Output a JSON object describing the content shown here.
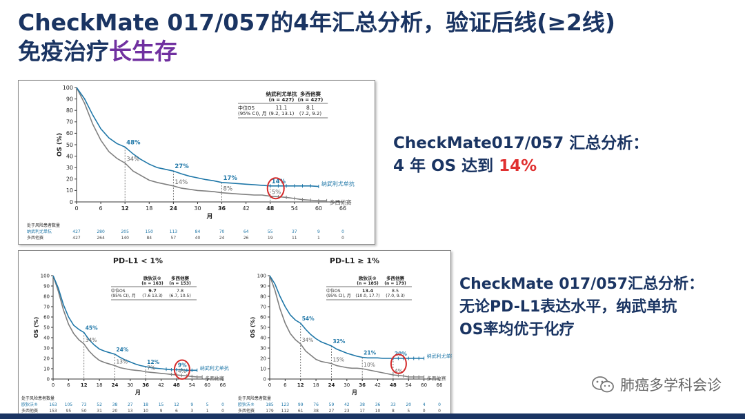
{
  "title": {
    "line1": "CheckMate 017/057的4年汇总分析，验证后线(≥2线)",
    "line2_plain": "免疫治疗",
    "line2_accent": "长生存"
  },
  "side1": {
    "line1": "CheckMate017/057 汇总分析：",
    "line2_plain": "4 年 OS 达到 ",
    "line2_red": "14%"
  },
  "side2": {
    "line1": "CheckMate 017/057汇总分析：",
    "line2": "无论PD-L1表达水平，纳武单抗",
    "line3": "OS率均优于化疗"
  },
  "watermark": {
    "text": "肺癌多学科会诊",
    "icon": "wechat-icon"
  },
  "colors": {
    "nivo": "#1f77a8",
    "doce": "#7f7f7f",
    "highlight": "#d42a2a",
    "dark": "#1a3462"
  },
  "chart_data": [
    {
      "type": "line",
      "title": "",
      "xlabel": "月",
      "ylabel": "OS (%)",
      "xlim": [
        0,
        66
      ],
      "ylim": [
        0,
        100
      ],
      "xticks": [
        "0",
        "6",
        "12",
        "18",
        "24",
        "30",
        "36",
        "42",
        "48",
        "54",
        "60",
        "66"
      ],
      "bold_xticks": [
        "12",
        "24",
        "36",
        "48"
      ],
      "yticks": [
        "0",
        "10",
        "20",
        "30",
        "40",
        "50",
        "60",
        "70",
        "80",
        "90",
        "100"
      ],
      "table": {
        "col1_head": "纳武利尤单抗",
        "col1_n": "(n = 427)",
        "col2_head": "多西他赛",
        "col2_n": "(n = 427)",
        "row_label1": "中位OS",
        "row_label2": "(95% CI), 月",
        "col1_median": "11.1",
        "col1_ci": "(9.2, 13.1)",
        "col2_median": "8.1",
        "col2_ci": "(7.2, 9.2)"
      },
      "series": [
        {
          "name": "纳武利尤单抗",
          "x": [
            0,
            2,
            4,
            6,
            8,
            10,
            12,
            14,
            16,
            18,
            20,
            22,
            24,
            26,
            28,
            30,
            32,
            34,
            36,
            38,
            40,
            42,
            44,
            46,
            48,
            50,
            52,
            54,
            56,
            58,
            60
          ],
          "y": [
            100,
            90,
            76,
            64,
            56,
            51,
            48,
            42,
            37,
            33,
            30,
            28.5,
            27,
            24.5,
            22.5,
            21,
            19.5,
            18.5,
            17,
            16.5,
            16,
            15.5,
            15,
            14.5,
            14,
            14,
            14,
            14,
            14,
            14,
            13.5
          ]
        },
        {
          "name": "多西他赛",
          "x": [
            0,
            2,
            4,
            6,
            8,
            10,
            12,
            14,
            16,
            18,
            20,
            22,
            24,
            26,
            28,
            30,
            32,
            34,
            36,
            38,
            40,
            42,
            44,
            46,
            48,
            50,
            52,
            54,
            56,
            58,
            60,
            62
          ],
          "y": [
            100,
            86,
            68,
            54,
            44,
            38,
            34,
            27,
            23,
            19,
            17,
            15.5,
            14,
            12,
            11,
            10,
            9.5,
            9,
            8,
            7.5,
            7,
            6.5,
            6,
            6,
            5,
            4.5,
            4,
            3,
            2,
            1.5,
            1,
            1
          ]
        }
      ],
      "annotations": [
        {
          "x": 12,
          "nivo": "48%",
          "doce": "34%"
        },
        {
          "x": 24,
          "nivo": "27%",
          "doce": "14%"
        },
        {
          "x": 36,
          "nivo": "17%",
          "doce": "8%"
        },
        {
          "x": 48,
          "nivo": "14%",
          "doce": "5%",
          "circled": true
        }
      ],
      "risk": {
        "header": "处于风险患者数量",
        "rows": [
          {
            "label": "纳武利尤单抗",
            "values": [
              "427",
              "280",
              "205",
              "150",
              "113",
              "84",
              "70",
              "64",
              "55",
              "37",
              "9",
              "0"
            ]
          },
          {
            "label": "多西他赛",
            "values": [
              "427",
              "264",
              "140",
              "84",
              "57",
              "40",
              "24",
              "26",
              "19",
              "11",
              "1",
              "0"
            ]
          }
        ]
      }
    },
    {
      "type": "line",
      "title": "PD-L1 < 1%",
      "xlabel": "月",
      "ylabel": "OS (%)",
      "xlim": [
        0,
        66
      ],
      "ylim": [
        0,
        100
      ],
      "xticks": [
        "0",
        "6",
        "12",
        "18",
        "24",
        "30",
        "36",
        "42",
        "48",
        "54",
        "60",
        "66"
      ],
      "bold_xticks": [
        "12",
        "24",
        "36",
        "48"
      ],
      "yticks": [
        "0",
        "10",
        "20",
        "30",
        "40",
        "50",
        "60",
        "70",
        "80",
        "90",
        "100"
      ],
      "table": {
        "col1_head": "欧狄沃®",
        "col1_n": "(n = 163)",
        "col2_head": "多西他赛",
        "col2_n": "(n = 153)",
        "row_label1": "中位OS",
        "row_label2": "(95% CI), 月",
        "col1_median": "9.7",
        "col1_ci": "(7.6 13.3)",
        "col2_median": "7.8",
        "col2_ci": "(6.7, 10.5)"
      },
      "series": [
        {
          "name": "纳武利尤单抗",
          "x": [
            0,
            2,
            4,
            6,
            8,
            10,
            12,
            14,
            16,
            18,
            20,
            22,
            24,
            26,
            28,
            30,
            32,
            34,
            36,
            38,
            40,
            42,
            44,
            46,
            48,
            50,
            52,
            54,
            56
          ],
          "y": [
            100,
            88,
            72,
            60,
            52,
            48,
            45,
            38,
            33,
            29,
            27,
            25.5,
            24,
            21,
            18.5,
            16.5,
            14.5,
            13,
            12,
            11,
            10.5,
            10,
            9.5,
            9,
            9,
            9,
            8.5,
            8.5,
            8.5
          ]
        },
        {
          "name": "多西他赛",
          "x": [
            0,
            2,
            4,
            6,
            8,
            10,
            12,
            14,
            16,
            18,
            20,
            22,
            24,
            26,
            28,
            30,
            32,
            34,
            36,
            38,
            40,
            42,
            44,
            46,
            48,
            50,
            52,
            54,
            56,
            58
          ],
          "y": [
            100,
            85,
            67,
            53,
            44,
            38,
            34,
            27,
            22,
            18,
            16,
            14.5,
            13,
            11,
            10,
            9,
            8.5,
            8,
            7,
            6.5,
            6,
            5.5,
            5,
            4.5,
            4,
            3.5,
            3,
            2.5,
            2,
            2
          ]
        }
      ],
      "annotations": [
        {
          "x": 12,
          "nivo": "45%",
          "doce": "34%"
        },
        {
          "x": 24,
          "nivo": "24%",
          "doce": "13%"
        },
        {
          "x": 36,
          "nivo": "12%",
          "doce": "7%"
        },
        {
          "x": 48,
          "nivo": "9%",
          "doce": "4%",
          "circled": true
        }
      ],
      "risk": {
        "header": "处于风险患者数量",
        "rows": [
          {
            "label": "欧狄沃®",
            "values": [
              "163",
              "105",
              "73",
              "52",
              "38",
              "27",
              "18",
              "15",
              "12",
              "9",
              "5",
              "0"
            ]
          },
          {
            "label": "多西他赛",
            "values": [
              "153",
              "95",
              "50",
              "31",
              "20",
              "13",
              "10",
              "9",
              "6",
              "3",
              "1",
              "0"
            ]
          }
        ]
      }
    },
    {
      "type": "line",
      "title": "PD-L1 ≥ 1%",
      "xlabel": "月",
      "ylabel": "OS (%)",
      "xlim": [
        0,
        66
      ],
      "ylim": [
        0,
        100
      ],
      "xticks": [
        "0",
        "6",
        "12",
        "18",
        "24",
        "30",
        "36",
        "42",
        "48",
        "54",
        "60",
        "66"
      ],
      "bold_xticks": [
        "12",
        "24",
        "36",
        "48"
      ],
      "yticks": [
        "0",
        "10",
        "20",
        "30",
        "40",
        "50",
        "60",
        "70",
        "80",
        "90",
        "100"
      ],
      "table": {
        "col1_head": "欧狄沃®",
        "col1_n": "(n = 185)",
        "col2_head": "多西他赛",
        "col2_n": "(n = 179)",
        "row_label1": "中位OS",
        "row_label2": "(95% CI), 月",
        "col1_median": "13.4",
        "col1_ci": "(10.0, 17.7)",
        "col2_median": "8.5",
        "col2_ci": "(7.0, 9.3)"
      },
      "series": [
        {
          "name": "纳武利尤单抗",
          "x": [
            0,
            2,
            4,
            6,
            8,
            10,
            12,
            14,
            16,
            18,
            20,
            22,
            24,
            26,
            28,
            30,
            32,
            34,
            36,
            38,
            40,
            42,
            44,
            46,
            48,
            50,
            52,
            54,
            56,
            58,
            60
          ],
          "y": [
            100,
            92,
            80,
            70,
            62,
            57,
            54,
            48,
            43,
            39,
            36,
            34,
            32,
            29,
            27,
            25,
            23.5,
            22,
            21,
            20.5,
            20.5,
            20.5,
            20,
            20,
            20,
            20,
            20,
            20,
            20,
            20,
            20
          ]
        },
        {
          "name": "多西他赛",
          "x": [
            0,
            2,
            4,
            6,
            8,
            10,
            12,
            14,
            16,
            18,
            20,
            22,
            24,
            26,
            28,
            30,
            32,
            34,
            36,
            38,
            40,
            42,
            44,
            46,
            48,
            50,
            52,
            54,
            56,
            58,
            60
          ],
          "y": [
            100,
            86,
            68,
            54,
            44,
            38,
            34,
            27,
            23,
            19,
            17,
            16,
            15,
            13,
            12,
            11,
            10.5,
            10.5,
            10,
            9,
            8,
            7,
            6,
            5,
            4,
            3.5,
            3,
            2,
            2,
            2,
            2
          ]
        }
      ],
      "annotations": [
        {
          "x": 12,
          "nivo": "54%",
          "doce": "34%"
        },
        {
          "x": 24,
          "nivo": "32%",
          "doce": "15%"
        },
        {
          "x": 36,
          "nivo": "21%",
          "doce": "10%"
        },
        {
          "x": 48,
          "nivo": "20%",
          "doce": "4%",
          "circled": true
        }
      ],
      "risk": {
        "header": "处于风险患者数量",
        "rows": [
          {
            "label": "欧狄沃®",
            "values": [
              "185",
              "123",
              "99",
              "76",
              "59",
              "42",
              "38",
              "36",
              "33",
              "20",
              "4",
              "0"
            ]
          },
          {
            "label": "多西他赛",
            "values": [
              "179",
              "112",
              "61",
              "38",
              "27",
              "23",
              "17",
              "10",
              "8",
              "5",
              "0",
              "0"
            ]
          }
        ]
      }
    }
  ]
}
